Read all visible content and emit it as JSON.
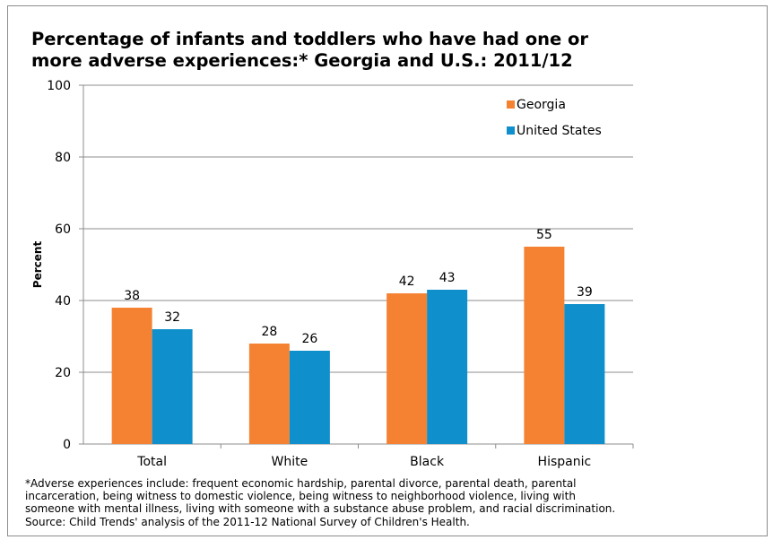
{
  "chart_data": {
    "type": "bar",
    "title_lines": [
      "Percentage of infants and toddlers who have had one or",
      "more adverse experiences:* Georgia and U.S.: 2011/12"
    ],
    "xlabel": "",
    "ylabel": "Percent",
    "ylim": [
      0,
      100
    ],
    "yticks": [
      0,
      20,
      40,
      60,
      80,
      100
    ],
    "grid": true,
    "legend_position": "top-right",
    "categories": [
      "Total",
      "White",
      "Black",
      "Hispanic"
    ],
    "series": [
      {
        "name": "Georgia",
        "color": "#f58232",
        "values": [
          38,
          28,
          42,
          55
        ]
      },
      {
        "name": "United States",
        "color": "#0f8fcb",
        "values": [
          32,
          26,
          43,
          39
        ]
      }
    ],
    "data_labels": [
      [
        "38",
        "28",
        "42",
        "55"
      ],
      [
        "32",
        "26",
        "43",
        "39"
      ]
    ]
  },
  "footnote": [
    "*Adverse experiences include: frequent economic hardship, parental divorce, parental death, parental",
    "incarceration, being witness to domestic violence, being witness to neighborhood violence, living with",
    "someone with mental illness, living with someone with a substance abuse problem, and racial discrimination.",
    "Source: Child Trends' analysis of the 2011-12 National Survey of Children's Health."
  ]
}
